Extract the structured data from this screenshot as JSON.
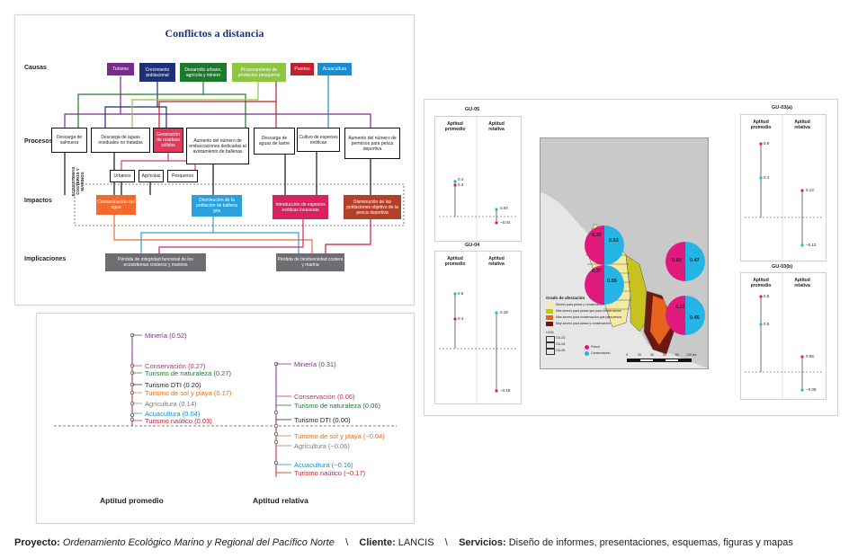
{
  "diagram": {
    "title": "Conflictos a distancia",
    "row_labels": {
      "causas": "Causas",
      "procesos": "Procesos",
      "impactos": "Impactos",
      "implicaciones": "Implicaciones"
    },
    "side_label": "ECOSISTEMAS COSTEROS Y MARINOS",
    "causes": [
      {
        "label": "Turismo",
        "color": "#7a2a8c"
      },
      {
        "label": "Crecimiento poblacional",
        "color": "#1f2f78"
      },
      {
        "label": "Desarrollo urbano, agrícola y minero",
        "color": "#1d7a2c"
      },
      {
        "label": "Procesamiento de productos pesqueros",
        "color": "#8dc63f"
      },
      {
        "label": "Puertos",
        "color": "#c21f2f"
      },
      {
        "label": "Acuacultura",
        "color": "#1b8ccf"
      }
    ],
    "processes": [
      {
        "label": "Descarga de salmuera"
      },
      {
        "label": "Descarga de aguas residuales no tratadas"
      },
      {
        "label": "Generación de residuos sólidos",
        "color": "#e2385c"
      },
      {
        "label": "Aumento del número de embarcaciones dedicadas al avistamiento de ballenas"
      },
      {
        "label": "Descarga de aguas de lastre"
      },
      {
        "label": "Cultivo de especies exóticas"
      },
      {
        "label": "Aumento del número de permisos para pesca deportiva"
      }
    ],
    "subprocesses": [
      "Urbanos",
      "Agrícolas",
      "Pesqueros"
    ],
    "impacts": [
      {
        "label": "Contaminación del agua",
        "color": "#f26a2e"
      },
      {
        "label": "Disminución de la población de ballena gris",
        "color": "#2aa1dc"
      },
      {
        "label": "Introducción de especies exóticas invasoras",
        "color": "#d8215f"
      },
      {
        "label": "Disminución de las poblaciones objetivo de la pesca deportiva",
        "color": "#b5402a"
      }
    ],
    "implications": [
      {
        "label": "Pérdida de integridad funcional de los ecosistemas costeros y marinos",
        "color": "#6d6e71"
      },
      {
        "label": "Pérdida de biodiversidad costera y marina",
        "color": "#6d6e71"
      }
    ]
  },
  "lollipop": {
    "left_caption": "Aptitud promedio",
    "right_caption": "Aptitud relativa",
    "left_items": [
      {
        "label": "Minería (0.52)",
        "color": "#7a2a8c"
      },
      {
        "label": "Conservación (0.27)",
        "color": "#d8215f"
      },
      {
        "label": "Turismo de naturaleza (0.27)",
        "color": "#1d7a2c"
      },
      {
        "label": "Turismo DTI (0.20)",
        "color": "#222222"
      },
      {
        "label": "Turismo de sol y playa (0.17)",
        "color": "#e0701e"
      },
      {
        "label": "Agricultura (0.14)",
        "color": "#7b7b7b"
      },
      {
        "label": "Acuacultura (0.04)",
        "color": "#1b8ccf"
      },
      {
        "label": "Turismo naútico (0.03)",
        "color": "#c21f2f"
      }
    ],
    "right_items": [
      {
        "label": "Minería (0.31)",
        "color": "#7a2a8c"
      },
      {
        "label": "Conservación (0.06)",
        "color": "#d8215f"
      },
      {
        "label": "Turismo de naturaleza (0.06)",
        "color": "#1d7a2c"
      },
      {
        "label": "Turismo DTI (0.00)",
        "color": "#222222"
      },
      {
        "label": "Turismo de sol y playa (−0.04)",
        "color": "#e0701e"
      },
      {
        "label": "Agricultura (−0.06)",
        "color": "#7b7b7b"
      },
      {
        "label": "Acuacultura (−0.16)",
        "color": "#1b8ccf"
      },
      {
        "label": "Turismo naútico (−0.17)",
        "color": "#c21f2f"
      }
    ]
  },
  "map": {
    "panels": [
      {
        "id": "GU-05",
        "col1": "Aptitud promedio",
        "col2": "Aptitud relativa",
        "v1a": "0.4",
        "v1b": "0.3",
        "v2a": "0.04",
        "v2b": "−0.04"
      },
      {
        "id": "GU-04",
        "col1": "Aptitud promedio",
        "col2": "Aptitud relativa",
        "v1a": "0.6",
        "v1b": "0.4",
        "v2a": "0.18",
        "v2b": "−0.18"
      },
      {
        "id": "GU-03(a)",
        "col1": "Aptitud promedio",
        "col2": "Aptitud relativa",
        "v1a": "0.8",
        "v1b": "0.4",
        "v2a": "0.13",
        "v2b": "−0.13"
      },
      {
        "id": "GU-03(b)",
        "col1": "Aptitud promedio",
        "col2": "Aptitud relativa",
        "v1a": "0.8",
        "v1b": "0.5",
        "v2a": "0.08",
        "v2b": "−0.08"
      }
    ],
    "pies": [
      {
        "a": "0.35",
        "b": "0.53"
      },
      {
        "a": "0.37",
        "b": "0.55"
      },
      {
        "a": "0.50",
        "b": "0.47"
      },
      {
        "a": "0.37",
        "b": "0.45"
      }
    ],
    "legend_title": "Grado de afectación",
    "legend_items": [
      {
        "label": "Severo para pesca y conservación",
        "color": "#f4eaa0"
      },
      {
        "label": "Más severo para pesca que para conservación",
        "color": "#c8c21e"
      },
      {
        "label": "Más severo para conservación que para pesca",
        "color": "#e8641e"
      },
      {
        "label": "Muy severo para pesca y conservación",
        "color": "#6b1a12"
      }
    ],
    "uga_title": "UGA",
    "uga_items": [
      "GU-03",
      "GU-04",
      "GU-05"
    ],
    "pie_legend": [
      {
        "label": "Pesca",
        "color": "#e0197d"
      },
      {
        "label": "Conservación",
        "color": "#25b4e6"
      }
    ],
    "scale_labels": [
      "0",
      "20",
      "40",
      "60",
      "80",
      "100 km"
    ]
  },
  "footer": {
    "proyecto_label": "Proyecto:",
    "proyecto": "Ordenamiento Ecológico Marino y Regional del Pacífico Norte",
    "sep1": "\\",
    "cliente_label": "Cliente:",
    "cliente": "LANCIS",
    "sep2": "\\",
    "servicios_label": "Servicios:",
    "servicios": "Diseño de informes, presentaciones, esquemas, figuras y mapas"
  }
}
